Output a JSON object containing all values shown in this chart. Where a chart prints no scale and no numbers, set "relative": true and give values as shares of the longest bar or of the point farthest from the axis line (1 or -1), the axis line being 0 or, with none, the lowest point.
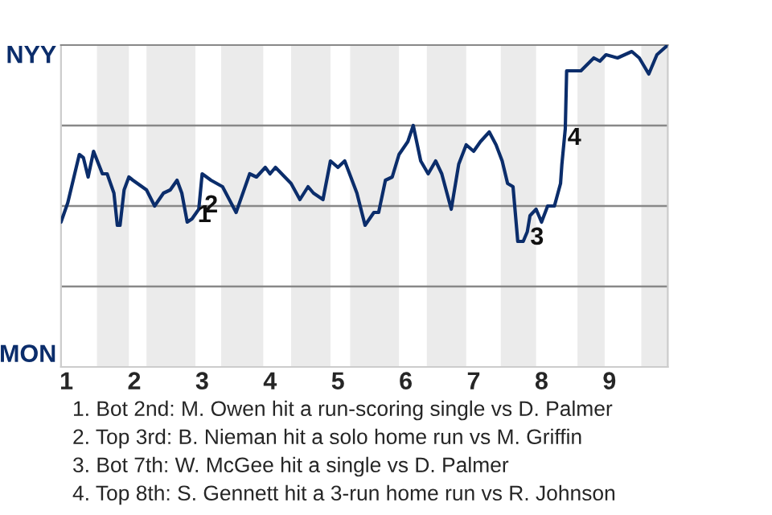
{
  "chart_data": {
    "type": "line",
    "relative": true,
    "x": [
      0.92,
      1.02,
      1.19,
      1.25,
      1.32,
      1.4,
      1.53,
      1.6,
      1.7,
      1.75,
      1.79,
      1.85,
      1.92,
      1.98,
      2.18,
      2.3,
      2.43,
      2.53,
      2.63,
      2.7,
      2.78,
      2.85,
      2.95,
      3.0,
      3.13,
      3.3,
      3.5,
      3.7,
      3.8,
      3.93,
      4.0,
      4.08,
      4.31,
      4.44,
      4.56,
      4.64,
      4.78,
      4.89,
      5.0,
      5.1,
      5.28,
      5.4,
      5.53,
      5.6,
      5.7,
      5.8,
      5.9,
      6.03,
      6.11,
      6.22,
      6.33,
      6.44,
      6.53,
      6.67,
      6.78,
      6.89,
      7.0,
      7.1,
      7.23,
      7.33,
      7.42,
      7.5,
      7.58,
      7.65,
      7.73,
      7.79,
      7.83,
      7.92,
      8.0,
      8.09,
      8.19,
      8.28,
      8.3,
      8.35,
      8.37,
      8.51,
      8.58,
      8.77,
      8.86,
      8.95,
      9.12,
      9.33,
      9.44,
      9.58,
      9.7,
      9.86
    ],
    "series": [
      {
        "color": "#0b2d6b",
        "values": [
          0.45,
          0.51,
          0.66,
          0.65,
          0.59,
          0.67,
          0.6,
          0.6,
          0.54,
          0.44,
          0.44,
          0.55,
          0.59,
          0.58,
          0.55,
          0.5,
          0.54,
          0.55,
          0.58,
          0.54,
          0.45,
          0.46,
          0.49,
          0.6,
          0.58,
          0.56,
          0.48,
          0.6,
          0.59,
          0.62,
          0.6,
          0.62,
          0.57,
          0.52,
          0.56,
          0.54,
          0.52,
          0.64,
          0.62,
          0.64,
          0.54,
          0.44,
          0.48,
          0.48,
          0.58,
          0.59,
          0.66,
          0.7,
          0.75,
          0.64,
          0.6,
          0.64,
          0.6,
          0.49,
          0.63,
          0.69,
          0.67,
          0.7,
          0.73,
          0.69,
          0.64,
          0.57,
          0.56,
          0.39,
          0.39,
          0.42,
          0.47,
          0.49,
          0.45,
          0.5,
          0.5,
          0.57,
          0.63,
          0.74,
          0.92,
          0.92,
          0.92,
          0.96,
          0.95,
          0.97,
          0.96,
          0.98,
          0.96,
          0.91,
          0.97,
          1.0
        ]
      }
    ],
    "xlim": [
      0.92,
      9.86
    ],
    "xticks": [
      1,
      2,
      3,
      4,
      5,
      6,
      7,
      8,
      9
    ],
    "ref_lines": [
      {
        "axis": "y",
        "value": 0.25,
        "color": "#888888"
      },
      {
        "axis": "y",
        "value": 0.5,
        "color": "#888888"
      },
      {
        "axis": "y",
        "value": 0.75,
        "color": "#888888"
      }
    ],
    "bands": [
      {
        "axis": "x",
        "from": 1.45,
        "to": 1.92,
        "color": "#ebebeb"
      },
      {
        "axis": "x",
        "from": 2.18,
        "to": 2.9,
        "color": "#ebebeb"
      },
      {
        "axis": "x",
        "from": 3.28,
        "to": 3.9,
        "color": "#ebebeb"
      },
      {
        "axis": "x",
        "from": 4.31,
        "to": 4.89,
        "color": "#ebebeb"
      },
      {
        "axis": "x",
        "from": 5.18,
        "to": 5.9,
        "color": "#ebebeb"
      },
      {
        "axis": "x",
        "from": 6.31,
        "to": 6.89,
        "color": "#ebebeb"
      },
      {
        "axis": "x",
        "from": 7.4,
        "to": 7.92,
        "color": "#ebebeb"
      },
      {
        "axis": "x",
        "from": 8.53,
        "to": 8.93,
        "color": "#ebebeb"
      },
      {
        "axis": "x",
        "from": 9.47,
        "to": 9.86,
        "color": "#ebebeb"
      }
    ],
    "annotations": [
      "NYY",
      "MON",
      {
        "text": "1",
        "x": 2.9,
        "y": 0.47
      },
      {
        "text": "2",
        "x": 3.0,
        "y": 0.5
      },
      {
        "text": "3",
        "x": 7.8,
        "y": 0.4
      },
      {
        "text": "4",
        "x": 8.35,
        "y": 0.71
      },
      "1. Bot 2nd: M. Owen hit a run-scoring single vs D. Palmer",
      "2. Top 3rd: B. Nieman hit a solo home run vs M. Griffin",
      "3. Bot 7th: W. McGee hit a single vs D. Palmer",
      "4. Top 8th: S. Gennett hit a 3-run home run vs R. Johnson"
    ],
    "legend": false
  }
}
